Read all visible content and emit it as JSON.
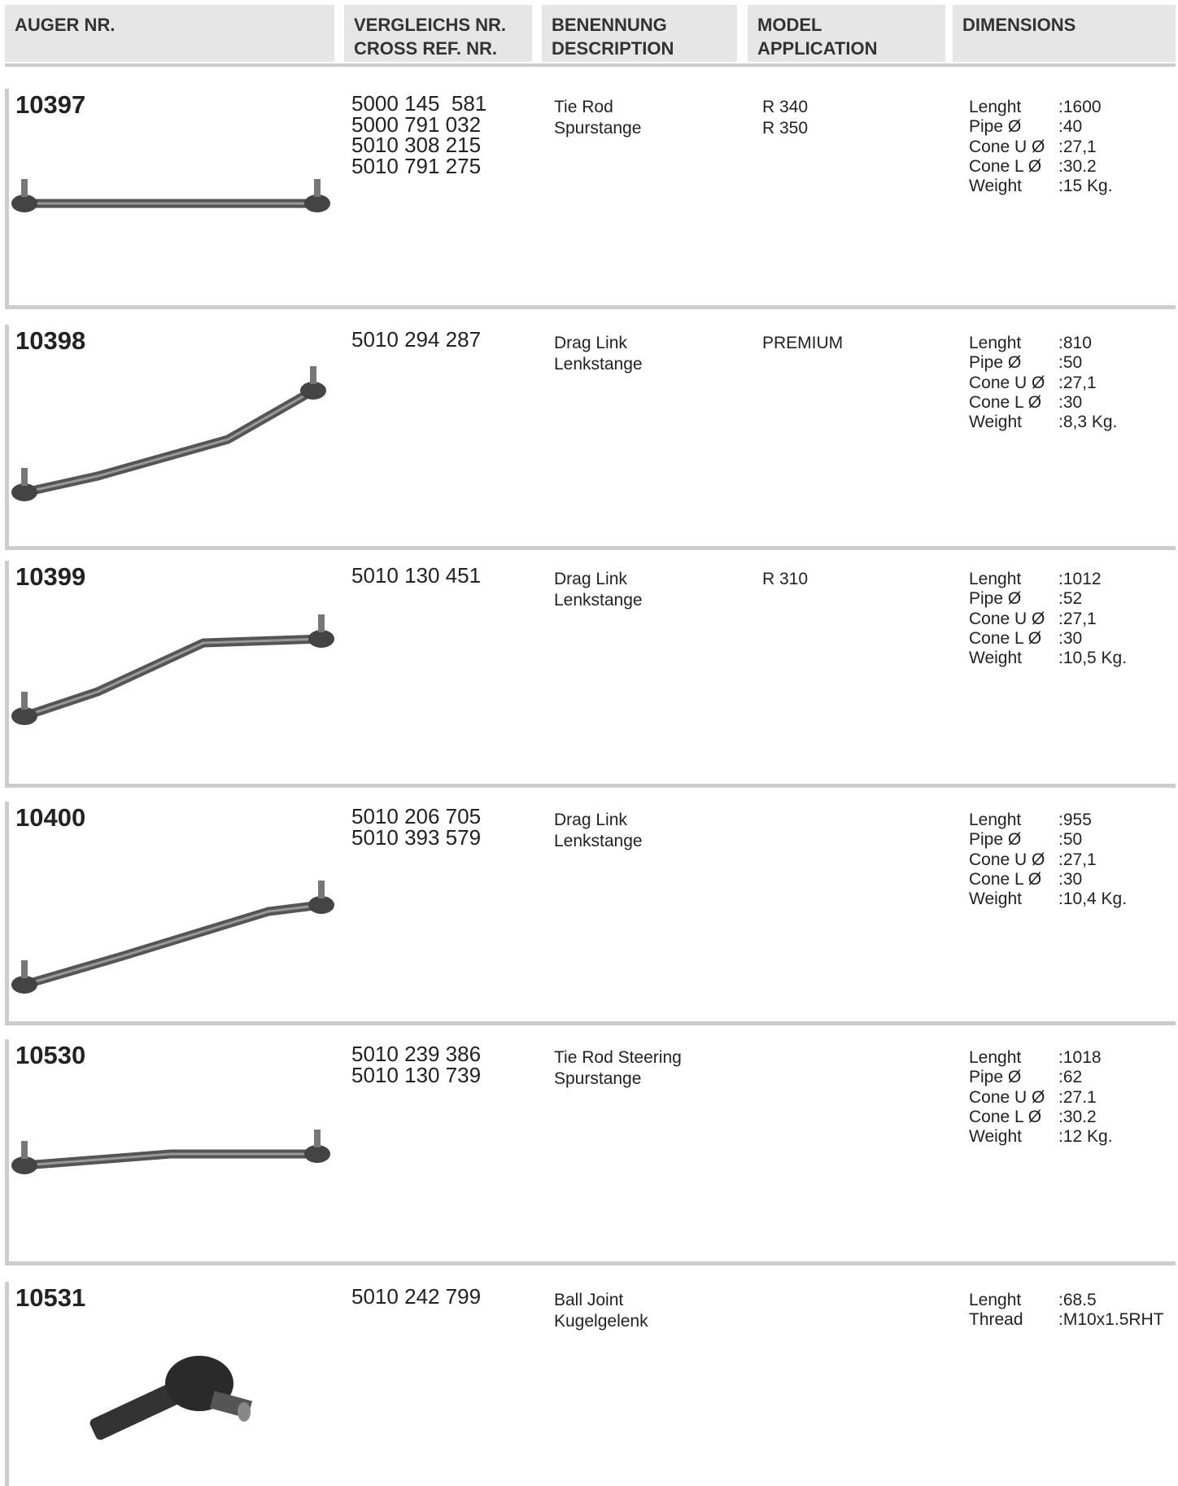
{
  "header": {
    "columns": [
      "AUGER NR.",
      [
        "VERGLEICHS NR.",
        "CROSS REF. NR."
      ],
      [
        "BENENNUNG",
        "DESCRIPTION"
      ],
      [
        "MODEL",
        "APPLICATION"
      ],
      "DIMENSIONS"
    ]
  },
  "rows": [
    {
      "auger_nr": "10397",
      "cross_refs": [
        "5000 145  581",
        "5000 791 032",
        "5010 308 215",
        "5010 791 275"
      ],
      "description": [
        "Tie Rod",
        "Spurstange"
      ],
      "model": [
        "R 340",
        "R 350"
      ],
      "dimensions": [
        {
          "label": "Lenght",
          "value": ":1600"
        },
        {
          "label": "Pipe Ø",
          "value": ":40"
        },
        {
          "label": "Cone U Ø",
          "value": ":27,1"
        },
        {
          "label": "Cone L Ø",
          "value": ":30.2"
        },
        {
          "label": "Weight",
          "value": ":15 Kg."
        }
      ]
    },
    {
      "auger_nr": "10398",
      "cross_refs": [
        "5010 294 287"
      ],
      "description": [
        "Drag Link",
        "Lenkstange"
      ],
      "model": [
        "PREMIUM"
      ],
      "dimensions": [
        {
          "label": "Lenght",
          "value": ":810"
        },
        {
          "label": "Pipe Ø",
          "value": ":50"
        },
        {
          "label": "Cone U Ø",
          "value": ":27,1"
        },
        {
          "label": "Cone L Ø",
          "value": ":30"
        },
        {
          "label": "Weight",
          "value": ":8,3 Kg."
        }
      ]
    },
    {
      "auger_nr": "10399",
      "cross_refs": [
        "5010 130 451"
      ],
      "description": [
        "Drag Link",
        "Lenkstange"
      ],
      "model": [
        "R 310"
      ],
      "dimensions": [
        {
          "label": "Lenght",
          "value": ":1012"
        },
        {
          "label": "Pipe Ø",
          "value": ":52"
        },
        {
          "label": "Cone U Ø",
          "value": ":27,1"
        },
        {
          "label": "Cone L Ø",
          "value": ":30"
        },
        {
          "label": "Weight",
          "value": ":10,5 Kg."
        }
      ]
    },
    {
      "auger_nr": "10400",
      "cross_refs": [
        "5010 206 705",
        "5010 393 579"
      ],
      "description": [
        "Drag Link",
        "Lenkstange"
      ],
      "model": [],
      "dimensions": [
        {
          "label": "Lenght",
          "value": ":955"
        },
        {
          "label": "Pipe Ø",
          "value": ":50"
        },
        {
          "label": "Cone U Ø",
          "value": ":27,1"
        },
        {
          "label": "Cone L Ø",
          "value": ":30"
        },
        {
          "label": "Weight",
          "value": ":10,4 Kg."
        }
      ]
    },
    {
      "auger_nr": "10530",
      "cross_refs": [
        "5010 239 386",
        "5010 130 739"
      ],
      "description": [
        "Tie Rod Steering",
        "Spurstange"
      ],
      "model": [],
      "dimensions": [
        {
          "label": "Lenght",
          "value": ":1018"
        },
        {
          "label": "Pipe Ø",
          "value": ":62"
        },
        {
          "label": "Cone U Ø",
          "value": ":27.1"
        },
        {
          "label": "Cone L Ø",
          "value": ":30.2"
        },
        {
          "label": "Weight",
          "value": ":12 Kg."
        }
      ]
    },
    {
      "auger_nr": "10531",
      "cross_refs": [
        "5010 242 799"
      ],
      "description": [
        "Ball Joint",
        "Kugelgelenk"
      ],
      "model": [],
      "dimensions": [
        {
          "label": "Lenght",
          "value": ":68.5"
        },
        {
          "label": "Thread",
          "value": ":M10x1.5RHT"
        }
      ]
    }
  ]
}
